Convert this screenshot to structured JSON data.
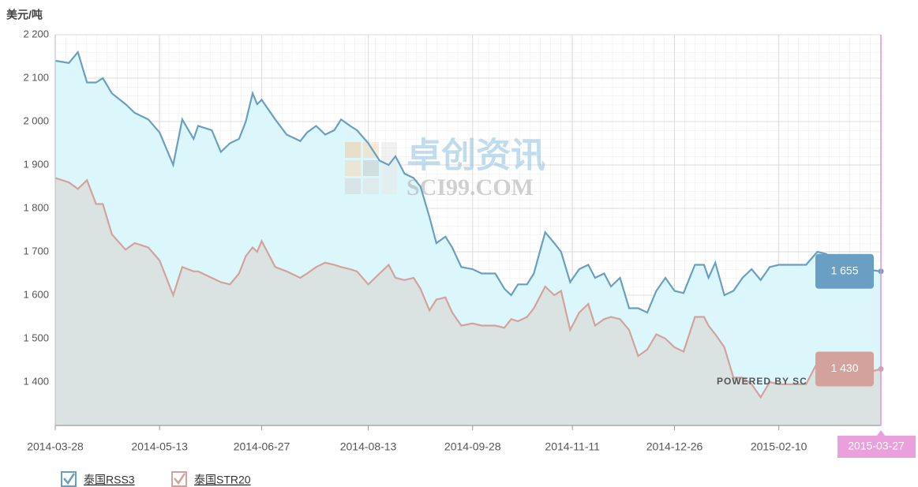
{
  "chart_data": {
    "type": "area-line",
    "y_unit": "美元/吨",
    "watermark": {
      "brand": "卓创资讯",
      "site": "SCI99.COM",
      "credit": "POWERED BY SC"
    },
    "xlim": [
      "2014-03-28",
      "2015-03-27"
    ],
    "xticks": [
      "2014-03-28",
      "2014-05-13",
      "2014-06-27",
      "2014-08-13",
      "2014-09-28",
      "2014-11-11",
      "2014-12-26",
      "2015-02-10"
    ],
    "highlight_x": "2015-03-27",
    "ylim": [
      1300,
      2200
    ],
    "yticks": [
      {
        "value": 1400,
        "label": "1 400"
      },
      {
        "value": 1500,
        "label": "1 500"
      },
      {
        "value": 1600,
        "label": "1 600"
      },
      {
        "value": 1700,
        "label": "1 700"
      },
      {
        "value": 1800,
        "label": "1 800"
      },
      {
        "value": 1900,
        "label": "1 900"
      },
      {
        "value": 2000,
        "label": "2 000"
      },
      {
        "value": 2100,
        "label": "2 100"
      },
      {
        "value": 2200,
        "label": "2 200"
      }
    ],
    "grid": true,
    "legend": "bottom-left",
    "x": [
      "2014-03-28",
      "2014-04-03",
      "2014-04-07",
      "2014-04-11",
      "2014-04-15",
      "2014-04-18",
      "2014-04-22",
      "2014-04-28",
      "2014-05-02",
      "2014-05-08",
      "2014-05-13",
      "2014-05-19",
      "2014-05-23",
      "2014-05-28",
      "2014-05-30",
      "2014-06-05",
      "2014-06-09",
      "2014-06-13",
      "2014-06-17",
      "2014-06-20",
      "2014-06-23",
      "2014-06-25",
      "2014-06-27",
      "2014-07-03",
      "2014-07-08",
      "2014-07-14",
      "2014-07-17",
      "2014-07-21",
      "2014-07-25",
      "2014-07-29",
      "2014-08-01",
      "2014-08-05",
      "2014-08-08",
      "2014-08-13",
      "2014-08-18",
      "2014-08-22",
      "2014-08-25",
      "2014-08-29",
      "2014-09-02",
      "2014-09-05",
      "2014-09-09",
      "2014-09-12",
      "2014-09-16",
      "2014-09-19",
      "2014-09-23",
      "2014-09-28",
      "2014-10-02",
      "2014-10-08",
      "2014-10-12",
      "2014-10-15",
      "2014-10-18",
      "2014-10-22",
      "2014-10-25",
      "2014-10-30",
      "2014-11-03",
      "2014-11-06",
      "2014-11-10",
      "2014-11-14",
      "2014-11-18",
      "2014-11-21",
      "2014-11-25",
      "2014-11-28",
      "2014-12-02",
      "2014-12-06",
      "2014-12-10",
      "2014-12-14",
      "2014-12-18",
      "2014-12-22",
      "2014-12-26",
      "2014-12-30",
      "2015-01-04",
      "2015-01-08",
      "2015-01-10",
      "2015-01-13",
      "2015-01-17",
      "2015-01-21",
      "2015-01-25",
      "2015-01-29",
      "2015-02-02",
      "2015-02-06",
      "2015-02-10",
      "2015-02-16",
      "2015-02-22",
      "2015-02-27",
      "2015-03-03",
      "2015-03-05",
      "2015-03-27"
    ],
    "series": [
      {
        "name": "泰国RSS3",
        "color": "#6a9fc4",
        "fill": "#dcf7fc",
        "values": [
          2140,
          2135,
          2160,
          2090,
          2090,
          2100,
          2065,
          2040,
          2020,
          2005,
          1975,
          1900,
          2005,
          1960,
          1990,
          1980,
          1930,
          1950,
          1960,
          2000,
          2065,
          2040,
          2050,
          2005,
          1970,
          1955,
          1975,
          1990,
          1970,
          1980,
          2005,
          1990,
          1980,
          1950,
          1910,
          1900,
          1920,
          1880,
          1870,
          1850,
          1780,
          1720,
          1735,
          1710,
          1665,
          1660,
          1650,
          1650,
          1615,
          1600,
          1625,
          1625,
          1650,
          1745,
          1720,
          1700,
          1630,
          1660,
          1670,
          1640,
          1650,
          1620,
          1640,
          1570,
          1570,
          1560,
          1610,
          1640,
          1610,
          1605,
          1670,
          1670,
          1640,
          1675,
          1600,
          1610,
          1640,
          1660,
          1635,
          1665,
          1670,
          1670,
          1670,
          1700,
          1695,
          1670,
          1655
        ],
        "end_label": {
          "value": 1655,
          "label": "1 655"
        }
      },
      {
        "name": "泰国STR20",
        "color": "#d4a29c",
        "fill": "#d9dfdd",
        "values": [
          1870,
          1860,
          1845,
          1865,
          1810,
          1810,
          1740,
          1705,
          1720,
          1710,
          1680,
          1600,
          1665,
          1655,
          1655,
          1640,
          1630,
          1625,
          1650,
          1690,
          1710,
          1700,
          1725,
          1665,
          1655,
          1640,
          1650,
          1665,
          1675,
          1670,
          1665,
          1660,
          1655,
          1625,
          1650,
          1670,
          1640,
          1635,
          1640,
          1615,
          1565,
          1590,
          1595,
          1560,
          1530,
          1535,
          1530,
          1530,
          1525,
          1545,
          1540,
          1550,
          1570,
          1620,
          1600,
          1610,
          1520,
          1560,
          1580,
          1530,
          1545,
          1550,
          1545,
          1520,
          1460,
          1475,
          1510,
          1500,
          1480,
          1470,
          1550,
          1550,
          1530,
          1510,
          1480,
          1410,
          1410,
          1395,
          1365,
          1400,
          1395,
          1395,
          1395,
          1445,
          1420,
          1400,
          1430
        ],
        "end_label": {
          "value": 1430,
          "label": "1 430"
        }
      }
    ]
  }
}
